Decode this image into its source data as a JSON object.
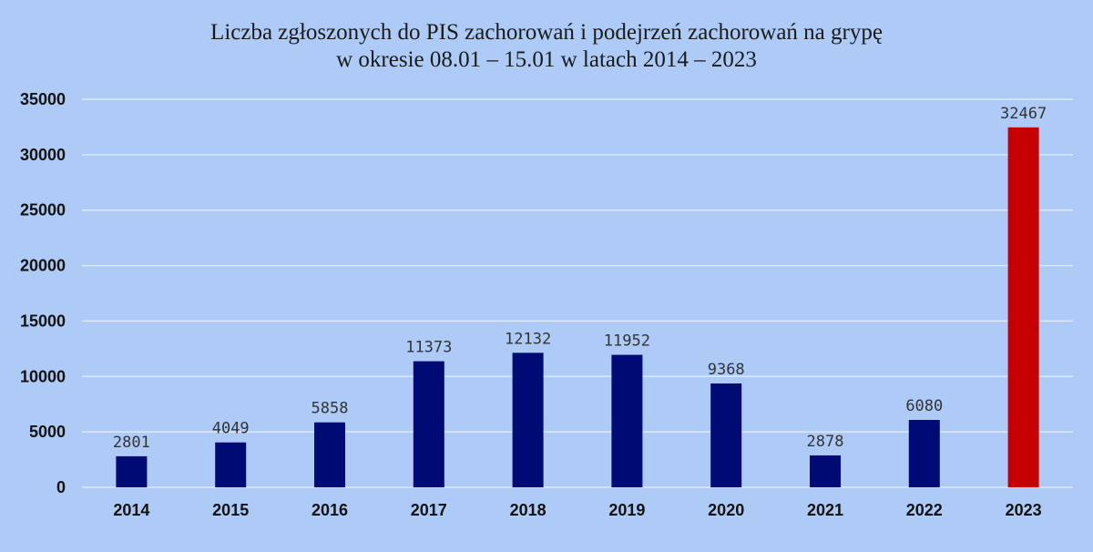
{
  "chart_data": {
    "type": "bar",
    "title": "Liczba zgłoszonych do PIS zachorowań i podejrzeń zachorowań na grypę",
    "subtitle": "w okresie 08.01 – 15.01 w latach 2014 – 2023",
    "categories": [
      "2014",
      "2015",
      "2016",
      "2017",
      "2018",
      "2019",
      "2020",
      "2021",
      "2022",
      "2023"
    ],
    "values": [
      2801,
      4049,
      5858,
      11373,
      12132,
      11952,
      9368,
      2878,
      6080,
      32467
    ],
    "ylim": [
      0,
      35000
    ],
    "yticks": [
      0,
      5000,
      10000,
      15000,
      20000,
      25000,
      30000,
      35000
    ],
    "grid": true,
    "legend": "none",
    "colors": {
      "bar": "#000a75",
      "highlight": "#c60000",
      "grid": "#dde8fb",
      "background": "#aecbf7"
    },
    "highlight_index": 9
  }
}
